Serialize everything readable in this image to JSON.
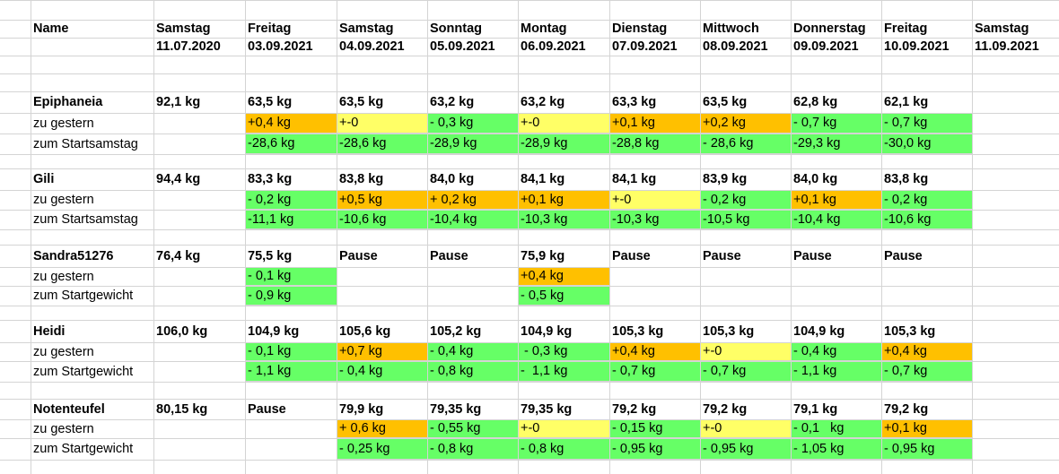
{
  "colors": {
    "orange": "#ffc000",
    "yellow": "#ffff66",
    "green": "#66ff66",
    "grid": "#d4d4d4"
  },
  "sheet": {
    "rows": [
      {
        "kind": "header",
        "cells": [
          {
            "t": "Name",
            "b": true
          },
          {
            "t": "Samstag",
            "b": true
          },
          {
            "t": "Freitag",
            "b": true
          },
          {
            "t": "Samstag",
            "b": true
          },
          {
            "t": "Sonntag",
            "b": true
          },
          {
            "t": "Montag",
            "b": true
          },
          {
            "t": "Dienstag",
            "b": true
          },
          {
            "t": "Mittwoch",
            "b": true
          },
          {
            "t": "Donnerstag",
            "b": true
          },
          {
            "t": "Freitag",
            "b": true
          },
          {
            "t": "Samstag",
            "b": true
          }
        ]
      },
      {
        "kind": "header",
        "cells": [
          {
            "t": ""
          },
          {
            "t": "11.07.2020",
            "b": true
          },
          {
            "t": "03.09.2021",
            "b": true
          },
          {
            "t": "04.09.2021",
            "b": true
          },
          {
            "t": "05.09.2021",
            "b": true
          },
          {
            "t": "06.09.2021",
            "b": true
          },
          {
            "t": "07.09.2021",
            "b": true
          },
          {
            "t": "08.09.2021",
            "b": true
          },
          {
            "t": "09.09.2021",
            "b": true
          },
          {
            "t": "10.09.2021",
            "b": true
          },
          {
            "t": "11.09.2021",
            "b": true
          }
        ]
      },
      {
        "kind": "empty",
        "cells": []
      },
      {
        "kind": "empty",
        "cells": []
      },
      {
        "kind": "name",
        "cells": [
          {
            "t": "Epiphaneia",
            "b": true
          },
          {
            "t": "92,1 kg",
            "b": true
          },
          {
            "t": "63,5 kg",
            "b": true
          },
          {
            "t": "63,5 kg",
            "b": true
          },
          {
            "t": "63,2 kg",
            "b": true
          },
          {
            "t": "63,2 kg",
            "b": true
          },
          {
            "t": "63,3 kg",
            "b": true
          },
          {
            "t": "63,5 kg",
            "b": true
          },
          {
            "t": "62,8 kg",
            "b": true
          },
          {
            "t": "62,1 kg",
            "b": true
          }
        ]
      },
      {
        "kind": "delta",
        "cells": [
          {
            "t": "zu gestern"
          },
          {
            "t": ""
          },
          {
            "t": "+0,4 kg",
            "c": "orange"
          },
          {
            "t": "+-0",
            "c": "yellow"
          },
          {
            "t": "- 0,3 kg",
            "c": "green"
          },
          {
            "t": "+-0",
            "c": "yellow"
          },
          {
            "t": "+0,1 kg",
            "c": "orange"
          },
          {
            "t": "+0,2 kg",
            "c": "orange"
          },
          {
            "t": "- 0,7 kg",
            "c": "green"
          },
          {
            "t": "- 0,7 kg",
            "c": "green"
          }
        ]
      },
      {
        "kind": "delta",
        "cells": [
          {
            "t": "zum Startsamstag"
          },
          {
            "t": ""
          },
          {
            "t": "-28,6 kg",
            "c": "green"
          },
          {
            "t": "-28,6 kg",
            "c": "green"
          },
          {
            "t": "-28,9 kg",
            "c": "green"
          },
          {
            "t": "-28,9 kg",
            "c": "green"
          },
          {
            "t": "-28,8 kg",
            "c": "green"
          },
          {
            "t": "- 28,6 kg",
            "c": "green"
          },
          {
            "t": "-29,3 kg",
            "c": "green"
          },
          {
            "t": "-30,0 kg",
            "c": "green"
          }
        ]
      },
      {
        "kind": "empty",
        "cells": []
      },
      {
        "kind": "name",
        "cells": [
          {
            "t": "Gili",
            "b": true
          },
          {
            "t": "94,4 kg",
            "b": true
          },
          {
            "t": "83,3 kg",
            "b": true
          },
          {
            "t": "83,8 kg",
            "b": true
          },
          {
            "t": "84,0 kg",
            "b": true
          },
          {
            "t": "84,1 kg",
            "b": true
          },
          {
            "t": "84,1 kg",
            "b": true
          },
          {
            "t": "83,9 kg",
            "b": true
          },
          {
            "t": "84,0 kg",
            "b": true
          },
          {
            "t": "83,8 kg",
            "b": true
          }
        ]
      },
      {
        "kind": "delta",
        "cells": [
          {
            "t": "zu gestern"
          },
          {
            "t": ""
          },
          {
            "t": "- 0,2 kg",
            "c": "green"
          },
          {
            "t": "+0,5 kg",
            "c": "orange"
          },
          {
            "t": "+ 0,2 kg",
            "c": "orange"
          },
          {
            "t": "+0,1 kg",
            "c": "orange"
          },
          {
            "t": "+-0",
            "c": "yellow"
          },
          {
            "t": "- 0,2 kg",
            "c": "green"
          },
          {
            "t": "+0,1 kg",
            "c": "orange"
          },
          {
            "t": "- 0,2 kg",
            "c": "green"
          }
        ]
      },
      {
        "kind": "delta",
        "cells": [
          {
            "t": "zum Startsamstag"
          },
          {
            "t": ""
          },
          {
            "t": "-11,1 kg",
            "c": "green"
          },
          {
            "t": "-10,6 kg",
            "c": "green"
          },
          {
            "t": "-10,4 kg",
            "c": "green"
          },
          {
            "t": "-10,3 kg",
            "c": "green"
          },
          {
            "t": "-10,3 kg",
            "c": "green"
          },
          {
            "t": "-10,5 kg",
            "c": "green"
          },
          {
            "t": "-10,4 kg",
            "c": "green"
          },
          {
            "t": "-10,6 kg",
            "c": "green"
          }
        ]
      },
      {
        "kind": "empty",
        "cells": []
      },
      {
        "kind": "name",
        "cells": [
          {
            "t": "Sandra51276",
            "b": true
          },
          {
            "t": "76,4 kg",
            "b": true
          },
          {
            "t": "75,5 kg",
            "b": true
          },
          {
            "t": "Pause",
            "b": true
          },
          {
            "t": "Pause",
            "b": true
          },
          {
            "t": "75,9 kg",
            "b": true
          },
          {
            "t": "Pause",
            "b": true
          },
          {
            "t": "Pause",
            "b": true
          },
          {
            "t": "Pause",
            "b": true
          },
          {
            "t": "Pause",
            "b": true
          }
        ]
      },
      {
        "kind": "delta",
        "cells": [
          {
            "t": "zu gestern"
          },
          {
            "t": ""
          },
          {
            "t": "- 0,1 kg",
            "c": "green"
          },
          {
            "t": ""
          },
          {
            "t": ""
          },
          {
            "t": "+0,4 kg",
            "c": "orange"
          }
        ]
      },
      {
        "kind": "delta",
        "cells": [
          {
            "t": "zum Startgewicht"
          },
          {
            "t": ""
          },
          {
            "t": "- 0,9 kg",
            "c": "green"
          },
          {
            "t": ""
          },
          {
            "t": ""
          },
          {
            "t": "- 0,5 kg",
            "c": "green"
          }
        ]
      },
      {
        "kind": "empty",
        "cells": []
      },
      {
        "kind": "name",
        "cells": [
          {
            "t": "Heidi",
            "b": true
          },
          {
            "t": "106,0 kg",
            "b": true
          },
          {
            "t": "104,9 kg",
            "b": true
          },
          {
            "t": "105,6 kg",
            "b": true
          },
          {
            "t": "105,2 kg",
            "b": true
          },
          {
            "t": "104,9 kg",
            "b": true
          },
          {
            "t": "105,3 kg",
            "b": true
          },
          {
            "t": "105,3 kg",
            "b": true
          },
          {
            "t": "104,9 kg",
            "b": true
          },
          {
            "t": "105,3 kg",
            "b": true
          }
        ]
      },
      {
        "kind": "delta",
        "cells": [
          {
            "t": "zu gestern"
          },
          {
            "t": ""
          },
          {
            "t": "- 0,1 kg",
            "c": "green"
          },
          {
            "t": "+0,7 kg",
            "c": "orange"
          },
          {
            "t": "- 0,4 kg",
            "c": "green"
          },
          {
            "t": " - 0,3 kg",
            "c": "green"
          },
          {
            "t": "+0,4 kg",
            "c": "orange"
          },
          {
            "t": "+-0",
            "c": "yellow"
          },
          {
            "t": "- 0,4 kg",
            "c": "green"
          },
          {
            "t": "+0,4 kg",
            "c": "orange"
          }
        ]
      },
      {
        "kind": "delta",
        "cells": [
          {
            "t": "zum Startgewicht"
          },
          {
            "t": ""
          },
          {
            "t": "- 1,1 kg",
            "c": "green"
          },
          {
            "t": "- 0,4 kg",
            "c": "green"
          },
          {
            "t": "- 0,8 kg",
            "c": "green"
          },
          {
            "t": "-  1,1 kg",
            "c": "green"
          },
          {
            "t": "- 0,7 kg",
            "c": "green"
          },
          {
            "t": "- 0,7 kg",
            "c": "green"
          },
          {
            "t": "- 1,1 kg",
            "c": "green"
          },
          {
            "t": "- 0,7 kg",
            "c": "green"
          }
        ]
      },
      {
        "kind": "empty",
        "cells": []
      },
      {
        "kind": "name",
        "cells": [
          {
            "t": "Notenteufel",
            "b": true
          },
          {
            "t": "80,15 kg",
            "b": true
          },
          {
            "t": "Pause",
            "b": true
          },
          {
            "t": "79,9 kg",
            "b": true
          },
          {
            "t": "79,35 kg",
            "b": true
          },
          {
            "t": "79,35 kg",
            "b": true
          },
          {
            "t": "79,2 kg",
            "b": true
          },
          {
            "t": "79,2 kg",
            "b": true
          },
          {
            "t": "79,1 kg",
            "b": true
          },
          {
            "t": "79,2 kg",
            "b": true
          }
        ]
      },
      {
        "kind": "delta",
        "cells": [
          {
            "t": "zu gestern"
          },
          {
            "t": ""
          },
          {
            "t": ""
          },
          {
            "t": "+ 0,6 kg",
            "c": "orange"
          },
          {
            "t": "- 0,55 kg",
            "c": "green"
          },
          {
            "t": "+-0",
            "c": "yellow"
          },
          {
            "t": "- 0,15 kg",
            "c": "green"
          },
          {
            "t": "+-0",
            "c": "yellow"
          },
          {
            "t": "- 0,1   kg",
            "c": "green"
          },
          {
            "t": "+0,1 kg",
            "c": "orange"
          }
        ]
      },
      {
        "kind": "delta",
        "cells": [
          {
            "t": "zum Startgewicht"
          },
          {
            "t": ""
          },
          {
            "t": ""
          },
          {
            "t": "- 0,25 kg",
            "c": "green"
          },
          {
            "t": "- 0,8 kg",
            "c": "green"
          },
          {
            "t": "- 0,8 kg",
            "c": "green"
          },
          {
            "t": "- 0,95 kg",
            "c": "green"
          },
          {
            "t": "- 0,95 kg",
            "c": "green"
          },
          {
            "t": "- 1,05 kg",
            "c": "green"
          },
          {
            "t": "- 0,95 kg",
            "c": "green"
          }
        ]
      },
      {
        "kind": "empty",
        "cells": []
      }
    ]
  }
}
